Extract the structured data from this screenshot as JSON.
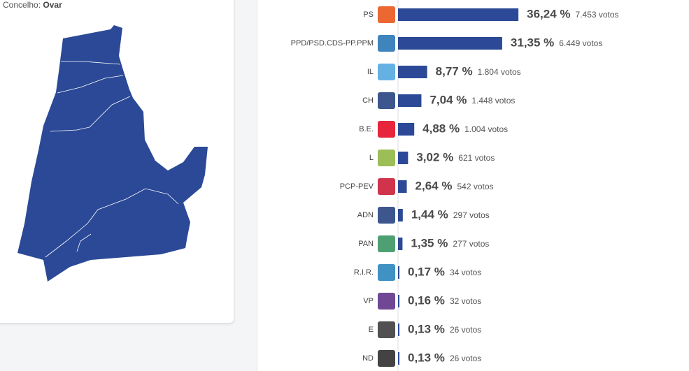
{
  "header": {
    "label": "Concelho:",
    "value": "Ovar"
  },
  "chart_data": {
    "type": "bar",
    "orientation": "horizontal",
    "color": "#2b4996",
    "categories": [
      "PS",
      "PPD/PSD.CDS-PP.PPM",
      "IL",
      "CH",
      "B.E.",
      "L",
      "PCP-PEV",
      "ADN",
      "PAN",
      "R.I.R.",
      "VP",
      "E",
      "ND"
    ],
    "values": [
      36.24,
      31.35,
      8.77,
      7.04,
      4.88,
      3.02,
      2.64,
      1.44,
      1.35,
      0.17,
      0.16,
      0.13,
      0.13
    ],
    "value_labels": [
      "36,24 %",
      "31,35 %",
      "8,77 %",
      "7,04 %",
      "4,88 %",
      "3,02 %",
      "2,64 %",
      "1,44 %",
      "1,35 %",
      "0,17 %",
      "0,16 %",
      "0,13 %",
      "0,13 %"
    ],
    "votes": [
      7453,
      6449,
      1804,
      1448,
      1004,
      621,
      542,
      297,
      277,
      34,
      32,
      26,
      26
    ],
    "votes_labels": [
      "7.453 votos",
      "6.449 votos",
      "1.804 votos",
      "1.448 votos",
      "1.004 votos",
      "621 votos",
      "542 votos",
      "297 votos",
      "277 votos",
      "34 votos",
      "32 votos",
      "26 votos",
      "26 votos"
    ]
  }
}
